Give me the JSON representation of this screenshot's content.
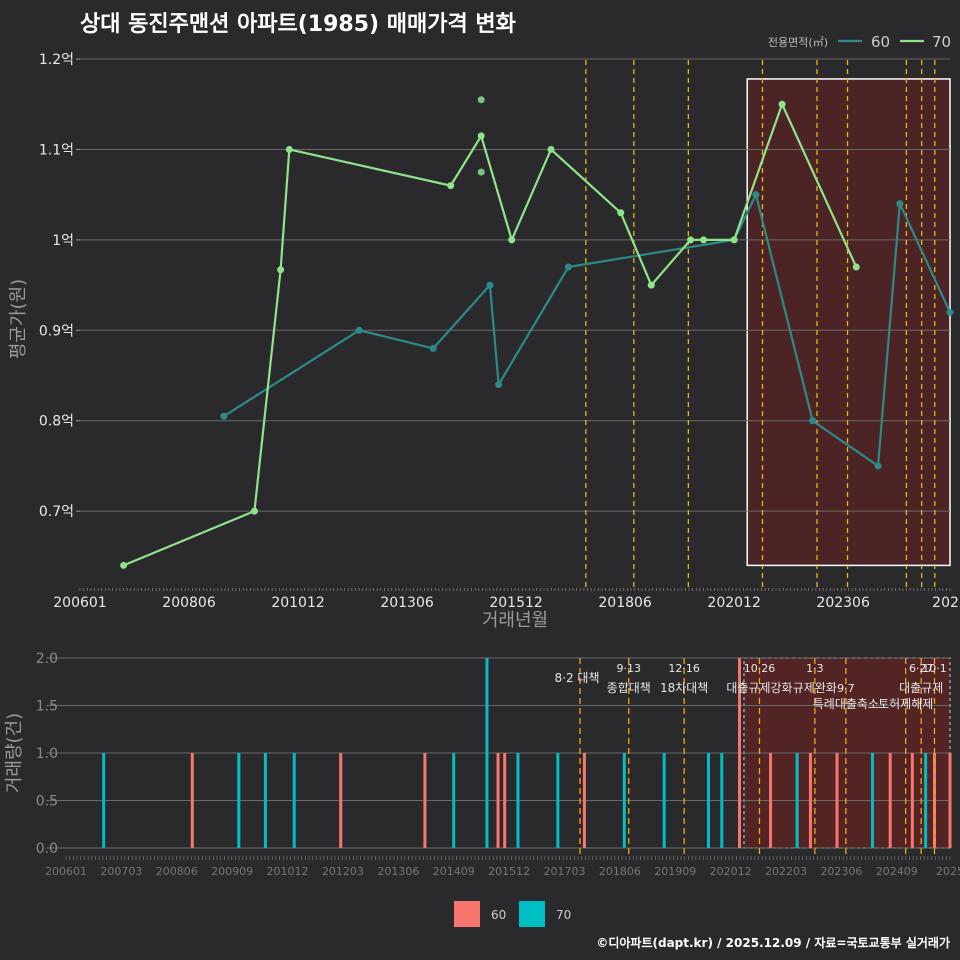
{
  "title": "상대 동진주맨션 아파트(1985) 매매가격 변화",
  "credit": "©디아파트(dapt.kr) / 2025.12.09 / 자료=국토교통부 실거래가",
  "colors": {
    "s60": "#2e8a86",
    "s70": "#90e38a",
    "bar60": "#f8766d",
    "bar70": "#00bfc4",
    "policy": "#e5b812",
    "highlight": "#5a2323"
  },
  "chart_data": [
    {
      "type": "line",
      "title": "상대 동진주맨션 아파트(1985) 매매가격 변화",
      "xlabel": "거래년월",
      "ylabel": "평균가(원)",
      "ylim": [
        0.615,
        1.21
      ],
      "yticks": [
        0.7,
        0.8,
        0.9,
        1.0,
        1.1,
        1.2
      ],
      "ytick_labels": [
        "0.7억",
        "0.8억",
        "0.9억",
        "1억",
        "1.1억",
        "1.2억"
      ],
      "xlim": [
        2006.0,
        2025.95
      ],
      "xtick_values": [
        2006.0,
        2008.5,
        2011.0,
        2013.5,
        2016.0,
        2018.5,
        2021.0,
        2023.5,
        2025.95
      ],
      "xtick_labels": [
        "200601",
        "200806",
        "201012",
        "201306",
        "201512",
        "201806",
        "202012",
        "202306",
        "2025"
      ],
      "legend_title": "전용면적(㎡)",
      "legend_position": "top-right",
      "series": [
        {
          "name": "60",
          "x": [
            2009.3,
            2012.4,
            2014.1,
            2015.4,
            2015.6,
            2017.2,
            2021.0,
            2021.5,
            2022.8,
            2024.3,
            2024.8,
            2025.95
          ],
          "y": [
            0.805,
            0.9,
            0.88,
            0.95,
            0.84,
            0.97,
            1.0,
            1.05,
            0.8,
            0.75,
            1.04,
            0.92
          ]
        },
        {
          "name": "70",
          "x": [
            2007.0,
            2010.0,
            2010.6,
            2010.8,
            2014.5,
            2015.2,
            2015.9,
            2016.8,
            2018.4,
            2019.1,
            2020.0,
            2020.3,
            2021.0,
            2022.1,
            2023.8
          ],
          "y": [
            0.64,
            0.7,
            0.967,
            1.1,
            1.06,
            1.115,
            1.0,
            1.1,
            1.03,
            0.95,
            1.0,
            1.0,
            1.0,
            1.15,
            0.97
          ]
        }
      ],
      "extra_points_70": [
        {
          "x": 2015.2,
          "y": 1.155
        },
        {
          "x": 2015.2,
          "y": 1.075
        }
      ],
      "policy_dates": [
        2017.6,
        2018.7,
        2019.95,
        2021.65,
        2022.9,
        2023.6,
        2024.95,
        2025.3,
        2025.6
      ],
      "highlight_range": [
        2021.3,
        2025.95
      ]
    },
    {
      "type": "bar",
      "xlabel": "",
      "ylabel": "거래량(건)",
      "ylim": [
        0,
        2.0
      ],
      "yticks": [
        0,
        0.5,
        1.0,
        1.5,
        2.0
      ],
      "ytick_labels": [
        "0.0",
        "0.5",
        "1.0",
        "1.5",
        "2.0"
      ],
      "xlim": [
        2006.0,
        2025.95
      ],
      "xtick_values": [
        2006.0,
        2007.25,
        2008.5,
        2009.75,
        2011.0,
        2012.25,
        2013.5,
        2014.75,
        2016.0,
        2017.25,
        2018.5,
        2019.75,
        2021.0,
        2022.25,
        2023.5,
        2024.75,
        2025.95
      ],
      "xtick_labels": [
        "200601",
        "200703",
        "200806",
        "200909",
        "201012",
        "201203",
        "201306",
        "201409",
        "201512",
        "201703",
        "201806",
        "201909",
        "202012",
        "202203",
        "202306",
        "202409",
        "2025"
      ],
      "legend": [
        "60",
        "70"
      ],
      "legend_position": "bottom",
      "bars": [
        {
          "x": 2006.85,
          "v": 1,
          "s": "70"
        },
        {
          "x": 2008.85,
          "v": 1,
          "s": "60"
        },
        {
          "x": 2009.9,
          "v": 1,
          "s": "70"
        },
        {
          "x": 2010.5,
          "v": 1,
          "s": "70"
        },
        {
          "x": 2011.15,
          "v": 1,
          "s": "70"
        },
        {
          "x": 2012.2,
          "v": 1,
          "s": "60"
        },
        {
          "x": 2014.1,
          "v": 1,
          "s": "60"
        },
        {
          "x": 2014.75,
          "v": 1,
          "s": "70"
        },
        {
          "x": 2015.5,
          "v": 2,
          "s": "70"
        },
        {
          "x": 2015.75,
          "v": 1,
          "s": "60"
        },
        {
          "x": 2015.9,
          "v": 1,
          "s": "60"
        },
        {
          "x": 2016.2,
          "v": 1,
          "s": "70"
        },
        {
          "x": 2017.1,
          "v": 1,
          "s": "70"
        },
        {
          "x": 2017.7,
          "v": 1,
          "s": "60"
        },
        {
          "x": 2018.6,
          "v": 1,
          "s": "70"
        },
        {
          "x": 2019.5,
          "v": 1,
          "s": "70"
        },
        {
          "x": 2020.5,
          "v": 1,
          "s": "70"
        },
        {
          "x": 2020.8,
          "v": 1,
          "s": "70"
        },
        {
          "x": 2021.2,
          "v": 2,
          "s": "60"
        },
        {
          "x": 2021.9,
          "v": 1,
          "s": "60"
        },
        {
          "x": 2022.5,
          "v": 1,
          "s": "70"
        },
        {
          "x": 2022.8,
          "v": 1,
          "s": "60"
        },
        {
          "x": 2023.4,
          "v": 1,
          "s": "60"
        },
        {
          "x": 2024.2,
          "v": 1,
          "s": "70"
        },
        {
          "x": 2024.6,
          "v": 1,
          "s": "60"
        },
        {
          "x": 2025.1,
          "v": 1,
          "s": "60"
        },
        {
          "x": 2025.4,
          "v": 1,
          "s": "70"
        },
        {
          "x": 2025.6,
          "v": 1,
          "s": "60"
        },
        {
          "x": 2025.95,
          "v": 1,
          "s": "60"
        }
      ],
      "policy_annotations": [
        {
          "x": 2017.6,
          "date": "",
          "label": "8·2 대책"
        },
        {
          "x": 2018.7,
          "date": "9·13",
          "label": "종합대책"
        },
        {
          "x": 2019.95,
          "date": "12·16",
          "label": "18차대책"
        },
        {
          "x": 2021.65,
          "date": "10·26",
          "label": "대출규제강화"
        },
        {
          "x": 2022.9,
          "date": "1·3",
          "label": "규제완화"
        },
        {
          "x": 2023.6,
          "date": "9·7",
          "label": "특례대출축소"
        },
        {
          "x": 2024.95,
          "date": "",
          "label": "토허제해제"
        },
        {
          "x": 2025.3,
          "date": "6·27",
          "label": "대출규제"
        },
        {
          "x": 2025.6,
          "date": "10·1",
          "label": ""
        }
      ],
      "highlight_range": [
        2021.3,
        2025.95
      ]
    }
  ]
}
